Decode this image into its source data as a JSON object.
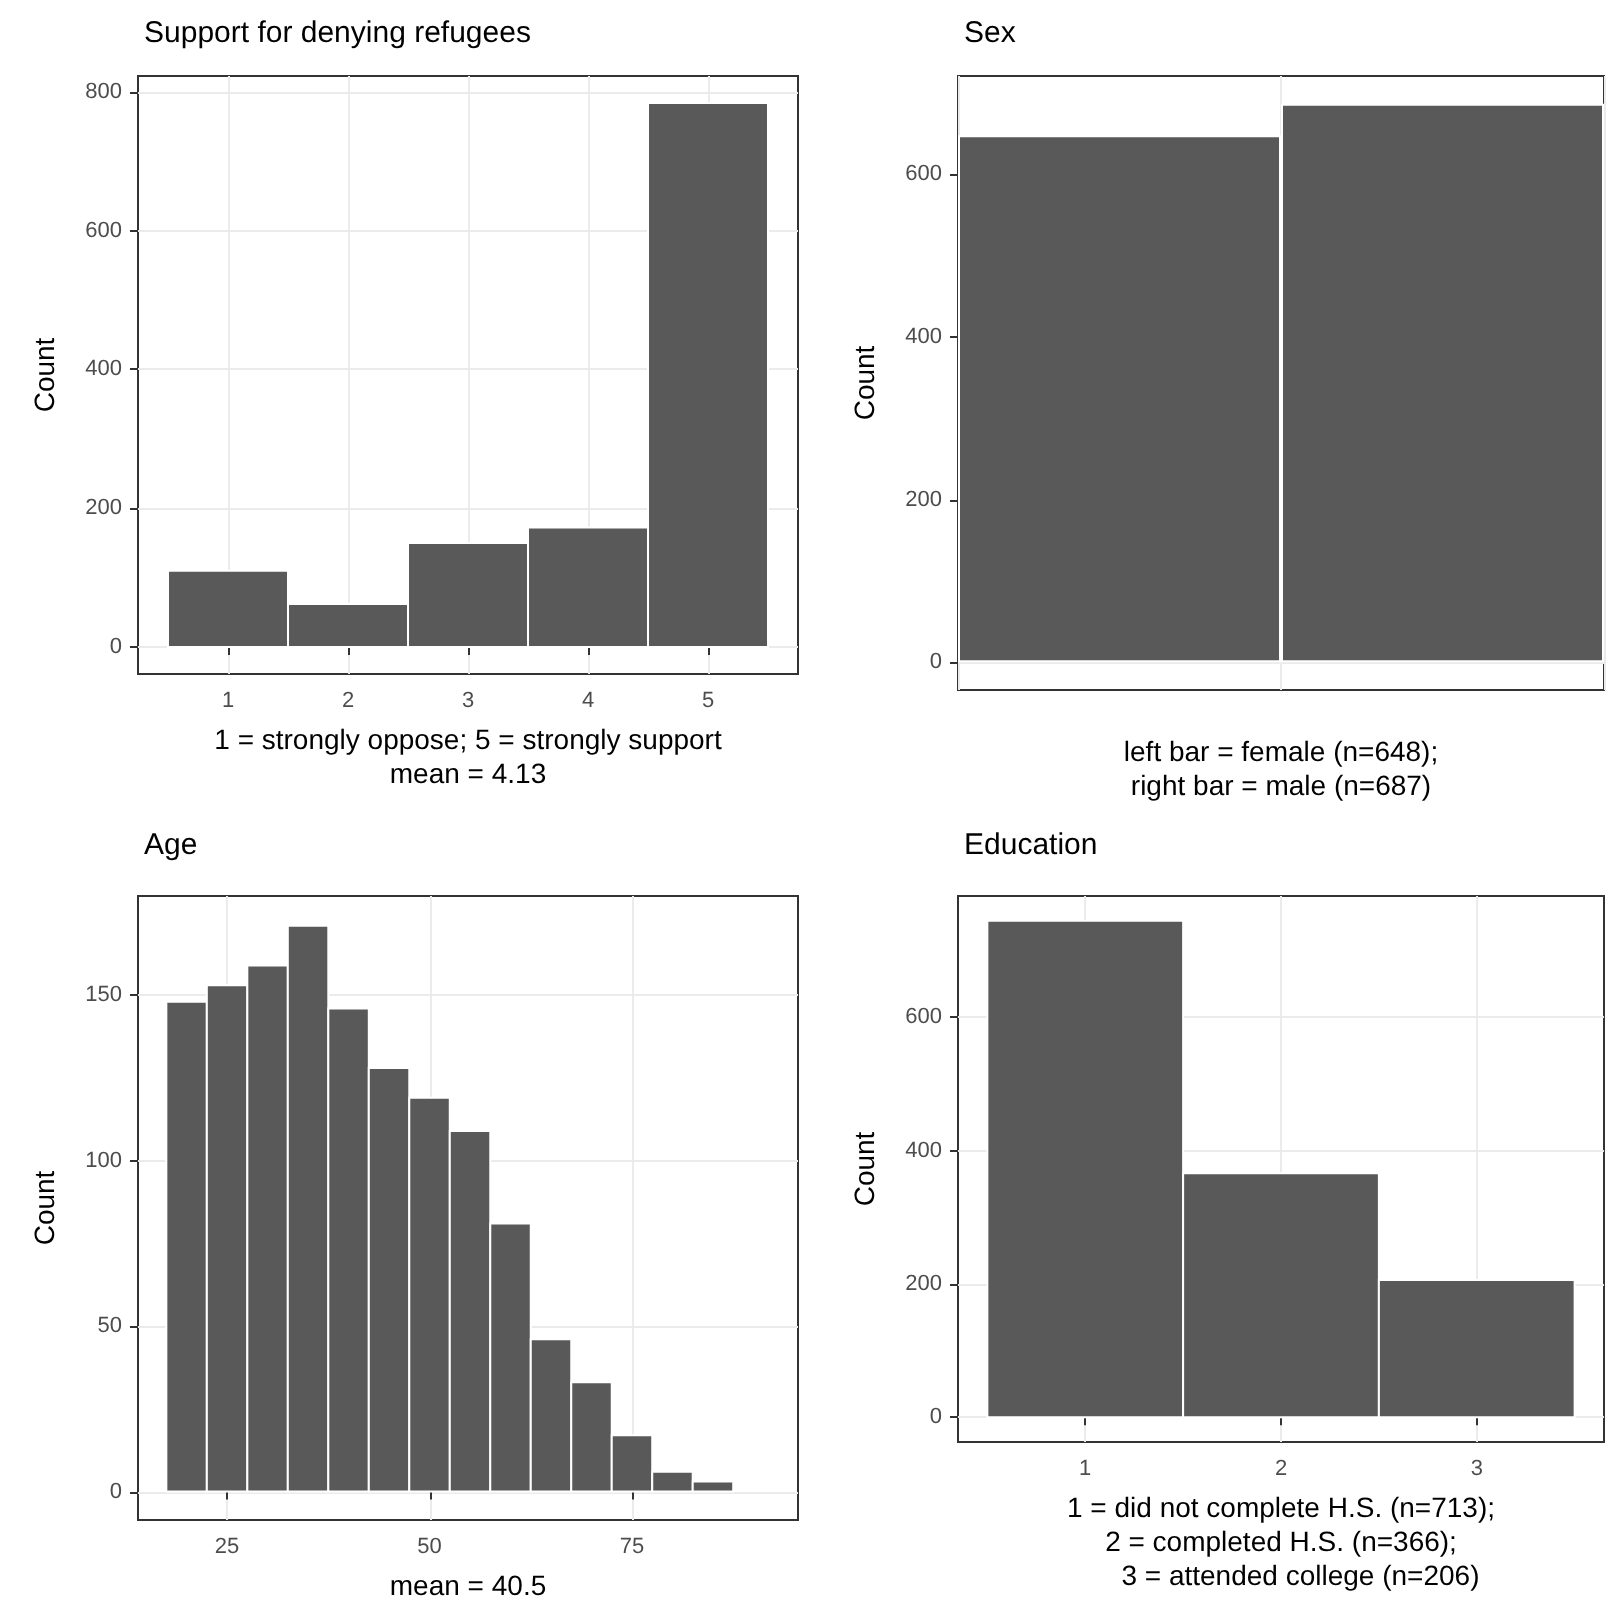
{
  "chart_data": [
    {
      "type": "histogram",
      "title": "Support for denying refugees",
      "xlabel": "1 = strongly oppose; 5 = strongly support\nmean = 4.13",
      "ylabel": "Count",
      "bins": [
        0.5,
        1.5,
        2.5,
        3.5,
        4.5,
        5.5
      ],
      "values": [
        110,
        62,
        150,
        172,
        784
      ],
      "color": "#595959",
      "xlim": [
        0.25,
        5.75
      ],
      "xticks": [
        1,
        2,
        3,
        4,
        5
      ],
      "ylim": [
        -39,
        823
      ],
      "yticks": [
        0,
        200,
        400,
        600,
        800
      ],
      "grid": true
    },
    {
      "type": "bar",
      "title": "Sex",
      "xlabel": "left bar = female (n=648);\nright bar = male (n=687)",
      "ylabel": "Count",
      "categories": [
        null,
        null
      ],
      "values": [
        648,
        687
      ],
      "color": "#595959",
      "ylim": [
        -34,
        721
      ],
      "yticks": [
        0,
        200,
        400,
        600
      ],
      "grid": true,
      "tick_labels": "y"
    },
    {
      "type": "histogram",
      "title": "Age",
      "xlabel": "mean = 40.5",
      "ylabel": "Count",
      "bins": [
        17.5,
        22.5,
        27.5,
        32.5,
        37.5,
        42.5,
        47.5,
        52.5,
        57.5,
        62.5,
        67.5,
        72.5,
        77.5,
        82.5,
        87.5
      ],
      "values": [
        148,
        153,
        159,
        171,
        146,
        128,
        119,
        109,
        81,
        46,
        33,
        17,
        6,
        3
      ],
      "color": "#595959",
      "xlim": [
        14,
        95.5
      ],
      "xticks": [
        25,
        50,
        75
      ],
      "ylim": [
        -8.6,
        180
      ],
      "yticks": [
        0,
        50,
        100,
        150
      ],
      "grid": true
    },
    {
      "type": "histogram",
      "title": "Education",
      "xlabel": "1 = did not complete H.S. (n=713);\n2 = completed H.S. (n=366);\n     3 = attended college (n=206)",
      "ylabel": "Count",
      "bins": [
        0.5,
        1.5,
        2.5,
        3.5
      ],
      "values": [
        745,
        366,
        206
      ],
      "color": "#595959",
      "xlim": [
        0.35,
        3.65
      ],
      "xticks": [
        1,
        2,
        3
      ],
      "ylim": [
        -37,
        782
      ],
      "yticks": [
        0,
        200,
        400,
        600
      ],
      "grid": true
    }
  ]
}
